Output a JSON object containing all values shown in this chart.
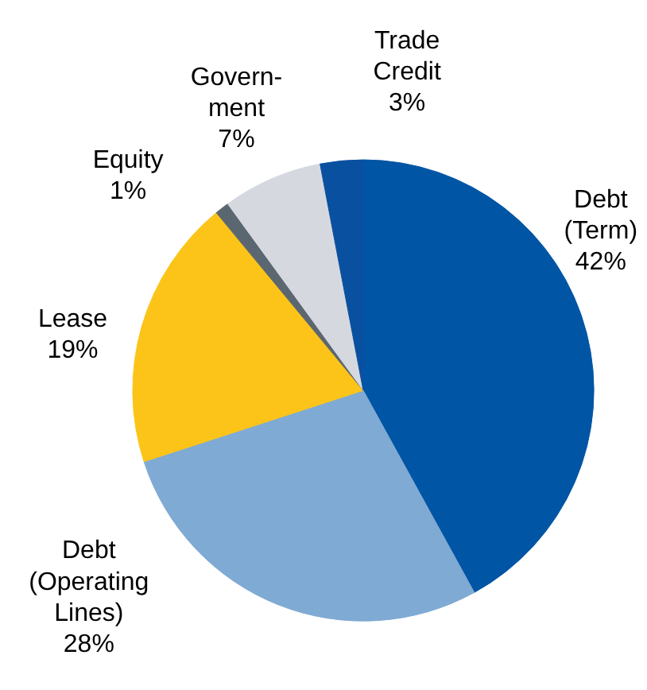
{
  "chart_data": {
    "type": "pie",
    "categories": [
      "Debt\n(Term)",
      "Debt\n(Operating\nLines)",
      "Lease",
      "Equity",
      "Govern-\nment",
      "Trade\nCredit"
    ],
    "values": [
      42,
      28,
      19,
      1,
      7,
      3
    ],
    "value_labels": [
      "42%",
      "28%",
      "19%",
      "1%",
      "7%",
      "3%"
    ],
    "colors": [
      "#0055a4",
      "#7faad3",
      "#fcc419",
      "#5b6770",
      "#d5d9df",
      "#0a50a0"
    ]
  }
}
